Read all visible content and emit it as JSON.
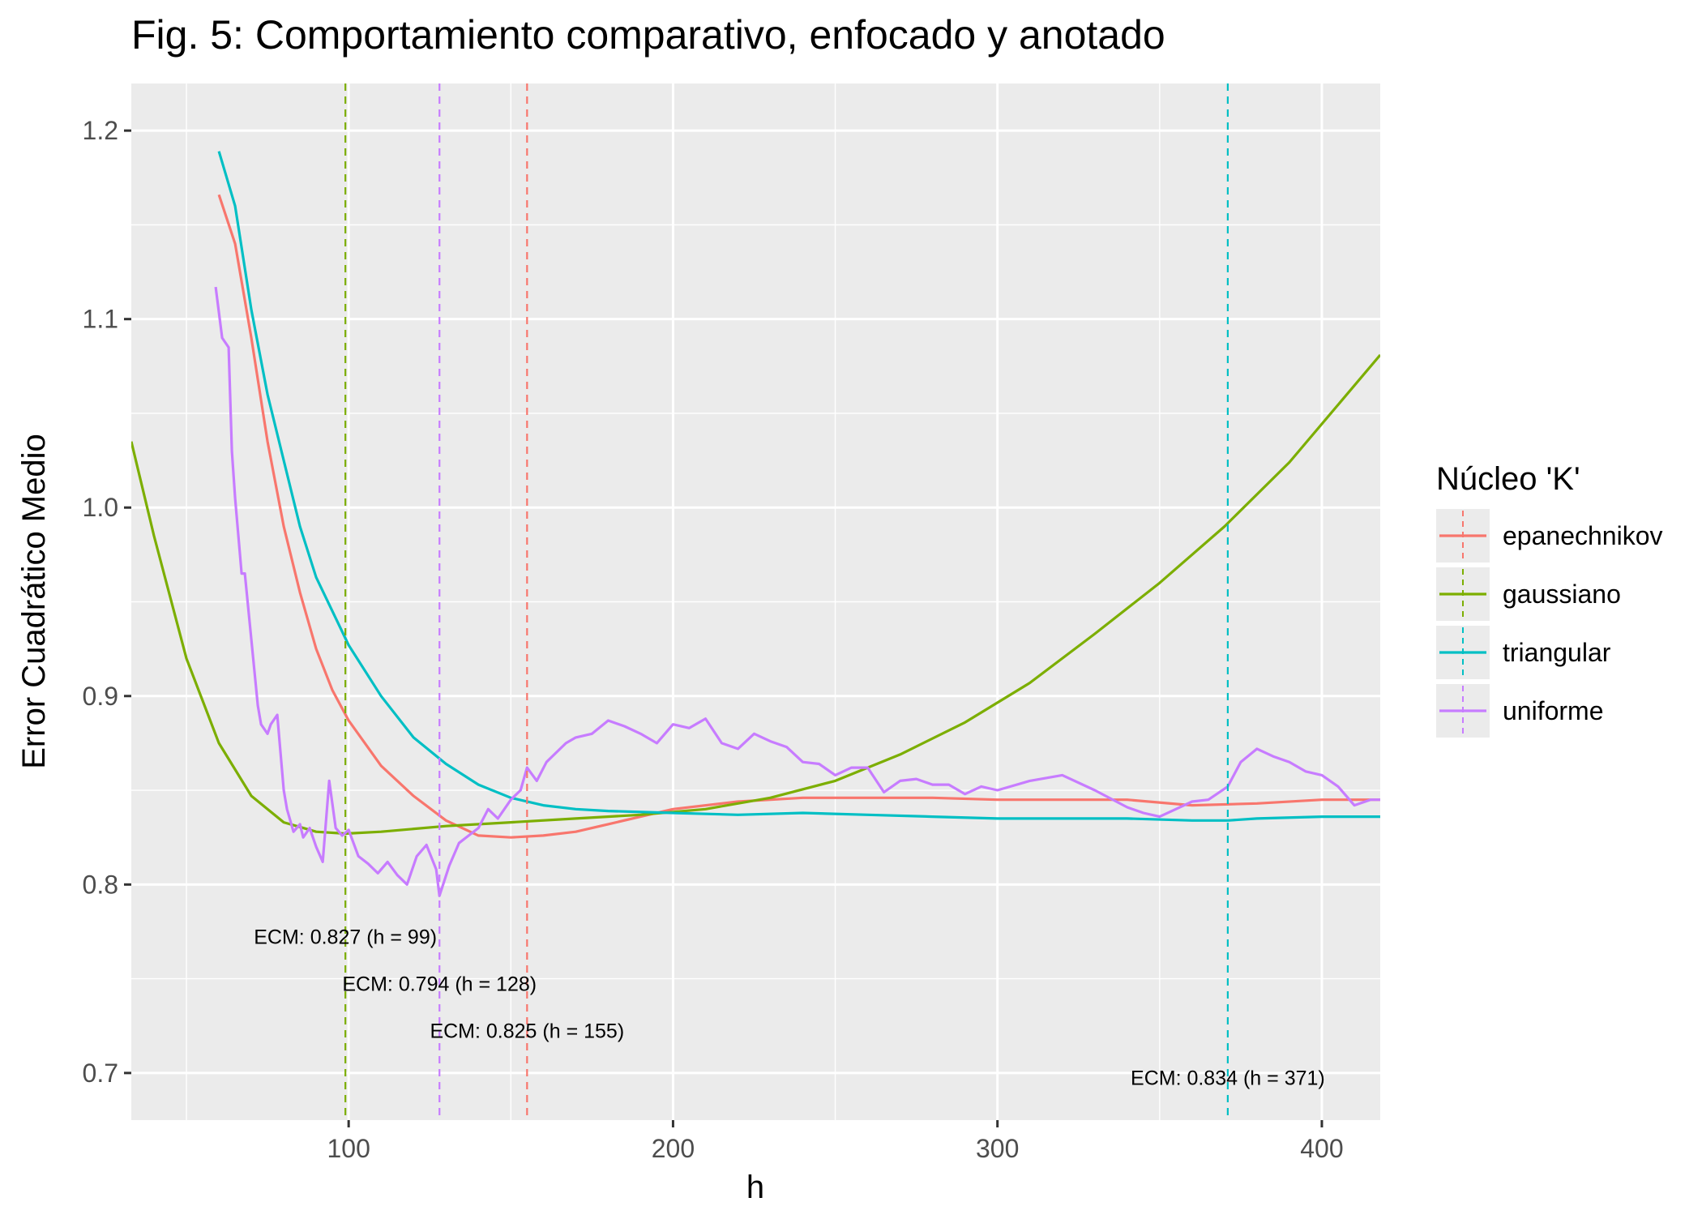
{
  "chart_data": {
    "type": "line",
    "title": "Fig. 5: Comportamiento comparativo, enfocado y anotado",
    "xlabel": "h",
    "ylabel": "Error Cuadrático Medio",
    "xlim": [
      33,
      418
    ],
    "ylim": [
      0.675,
      1.225
    ],
    "x_ticks": [
      100,
      200,
      300,
      400
    ],
    "y_ticks": [
      0.7,
      0.8,
      0.9,
      1.0,
      1.1,
      1.2
    ],
    "y_tick_labels": [
      "0.7",
      "0.8",
      "0.9",
      "1.0",
      "1.1",
      "1.2"
    ],
    "background": "#ebebeb",
    "grid": true,
    "legend": {
      "title": "Núcleo 'K'",
      "placement": "right",
      "entries": [
        "epanechnikov",
        "gaussiano",
        "triangular",
        "uniforme"
      ]
    },
    "series": [
      {
        "name": "epanechnikov",
        "color": "#f8766d",
        "x": [
          60,
          65,
          70,
          75,
          80,
          85,
          90,
          95,
          100,
          110,
          120,
          130,
          140,
          150,
          160,
          170,
          180,
          190,
          200,
          220,
          240,
          260,
          280,
          300,
          320,
          340,
          360,
          380,
          400,
          418
        ],
        "values": [
          1.166,
          1.14,
          1.09,
          1.035,
          0.99,
          0.955,
          0.925,
          0.903,
          0.887,
          0.863,
          0.847,
          0.834,
          0.826,
          0.825,
          0.826,
          0.828,
          0.832,
          0.836,
          0.84,
          0.844,
          0.846,
          0.846,
          0.846,
          0.845,
          0.845,
          0.845,
          0.842,
          0.843,
          0.845,
          0.845
        ]
      },
      {
        "name": "gaussiano",
        "color": "#7cae00",
        "x": [
          33,
          40,
          50,
          60,
          70,
          80,
          90,
          99,
          110,
          130,
          150,
          170,
          190,
          210,
          230,
          250,
          270,
          290,
          310,
          330,
          350,
          370,
          390,
          418
        ],
        "values": [
          1.035,
          0.985,
          0.92,
          0.875,
          0.847,
          0.833,
          0.828,
          0.827,
          0.828,
          0.831,
          0.833,
          0.835,
          0.837,
          0.84,
          0.846,
          0.855,
          0.869,
          0.886,
          0.907,
          0.933,
          0.96,
          0.99,
          1.024,
          1.081
        ]
      },
      {
        "name": "triangular",
        "color": "#00bfc4",
        "x": [
          60,
          65,
          70,
          75,
          80,
          85,
          90,
          100,
          110,
          120,
          130,
          140,
          150,
          160,
          170,
          180,
          200,
          220,
          240,
          260,
          280,
          300,
          320,
          340,
          360,
          371,
          380,
          400,
          418
        ],
        "values": [
          1.189,
          1.16,
          1.105,
          1.06,
          1.025,
          0.99,
          0.963,
          0.927,
          0.9,
          0.878,
          0.864,
          0.853,
          0.846,
          0.842,
          0.84,
          0.839,
          0.838,
          0.837,
          0.838,
          0.837,
          0.836,
          0.835,
          0.835,
          0.835,
          0.834,
          0.834,
          0.835,
          0.836,
          0.836
        ]
      },
      {
        "name": "uniforme",
        "color": "#c77cff",
        "x": [
          59,
          61,
          63,
          64,
          65,
          67,
          68,
          70,
          72,
          73,
          75,
          76,
          78,
          80,
          81,
          83,
          85,
          86,
          88,
          90,
          92,
          94,
          96,
          98,
          100,
          103,
          106,
          109,
          112,
          115,
          118,
          121,
          124,
          127,
          128,
          131,
          134,
          137,
          140,
          143,
          146,
          150,
          153,
          155,
          158,
          161,
          164,
          167,
          170,
          175,
          180,
          185,
          190,
          195,
          200,
          205,
          210,
          215,
          220,
          225,
          230,
          235,
          240,
          245,
          250,
          255,
          260,
          265,
          270,
          275,
          280,
          285,
          290,
          295,
          300,
          310,
          320,
          330,
          340,
          345,
          350,
          355,
          360,
          365,
          371,
          375,
          380,
          385,
          390,
          395,
          400,
          405,
          410,
          415,
          418
        ],
        "values": [
          1.117,
          1.09,
          1.085,
          1.03,
          1.005,
          0.965,
          0.965,
          0.93,
          0.895,
          0.885,
          0.88,
          0.885,
          0.89,
          0.85,
          0.84,
          0.828,
          0.832,
          0.825,
          0.83,
          0.82,
          0.812,
          0.855,
          0.83,
          0.826,
          0.829,
          0.815,
          0.811,
          0.806,
          0.812,
          0.805,
          0.8,
          0.815,
          0.821,
          0.808,
          0.794,
          0.81,
          0.822,
          0.826,
          0.83,
          0.84,
          0.835,
          0.845,
          0.85,
          0.862,
          0.855,
          0.865,
          0.87,
          0.875,
          0.878,
          0.88,
          0.887,
          0.884,
          0.88,
          0.875,
          0.885,
          0.883,
          0.888,
          0.875,
          0.872,
          0.88,
          0.876,
          0.873,
          0.865,
          0.864,
          0.858,
          0.862,
          0.862,
          0.849,
          0.855,
          0.856,
          0.853,
          0.853,
          0.848,
          0.852,
          0.85,
          0.855,
          0.858,
          0.85,
          0.841,
          0.838,
          0.836,
          0.84,
          0.844,
          0.845,
          0.852,
          0.865,
          0.872,
          0.868,
          0.865,
          0.86,
          0.858,
          0.852,
          0.842,
          0.845,
          0.845
        ]
      }
    ],
    "vlines": [
      {
        "series": "gaussiano",
        "x": 99,
        "color": "#7cae00"
      },
      {
        "series": "uniforme",
        "x": 128,
        "color": "#c77cff"
      },
      {
        "series": "epanechnikov",
        "x": 155,
        "color": "#f8766d"
      },
      {
        "series": "triangular",
        "x": 371,
        "color": "#00bfc4"
      }
    ],
    "annotations": [
      {
        "text": "ECM: 0.827 (h = 99)",
        "x": 99,
        "y": 0.7725
      },
      {
        "text": "ECM: 0.794 (h = 128)",
        "x": 128,
        "y": 0.7475
      },
      {
        "text": "ECM: 0.825 (h = 155)",
        "x": 155,
        "y": 0.7225
      },
      {
        "text": "ECM: 0.834 (h = 371)",
        "x": 371,
        "y": 0.6975
      }
    ]
  }
}
